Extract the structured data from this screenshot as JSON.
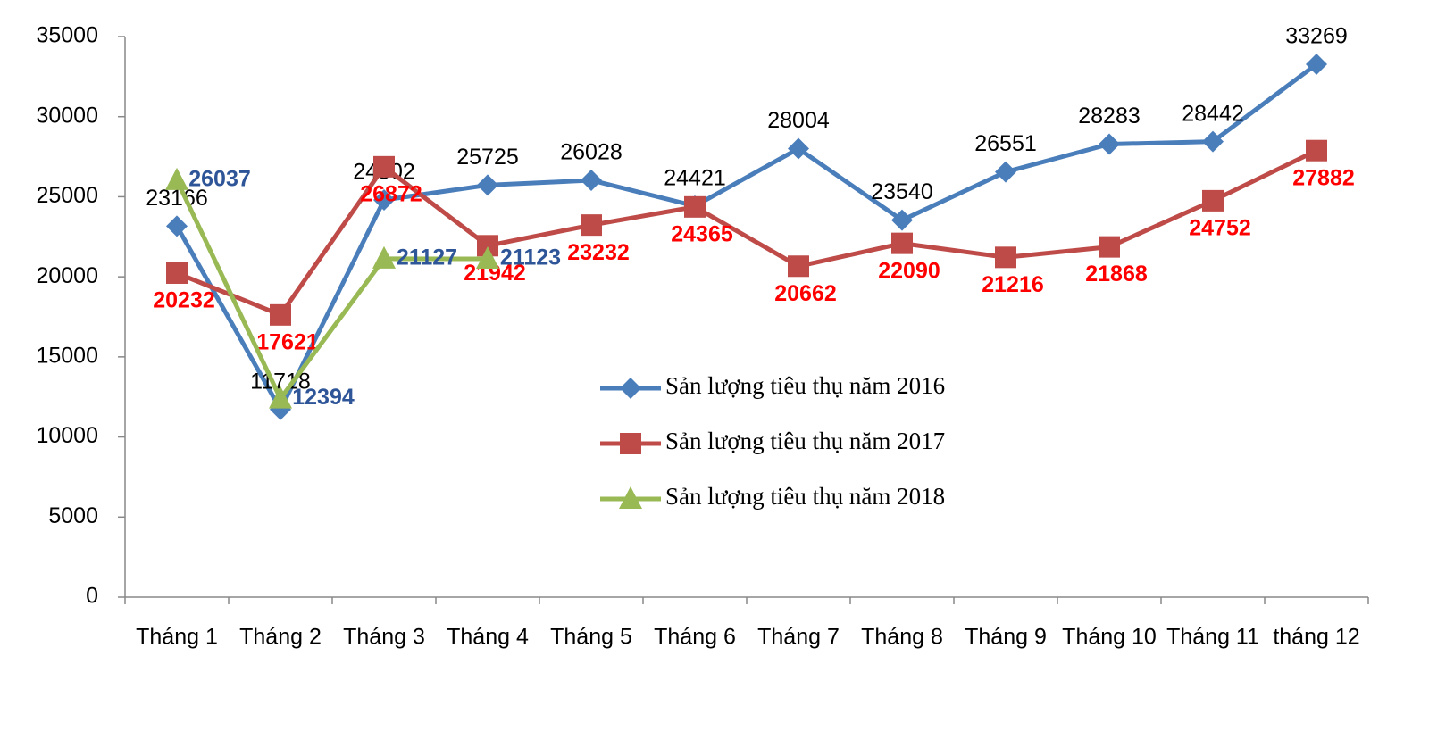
{
  "chart_data": {
    "type": "line",
    "categories": [
      "Tháng 1",
      "Tháng 2",
      "Tháng 3",
      "Tháng 4",
      "Tháng 5",
      "Tháng 6",
      "Tháng 7",
      "Tháng 8",
      "Tháng 9",
      "Tháng 10",
      "Tháng 11",
      "tháng 12"
    ],
    "series": [
      {
        "name": "Sản lượng tiêu thụ năm 2016",
        "color": "#4a7ebb",
        "marker": "diamond",
        "label_color": "#000000",
        "label_bold": false,
        "values": [
          23166,
          11718,
          24802,
          25725,
          26028,
          24421,
          28004,
          23540,
          26551,
          28283,
          28442,
          33269
        ]
      },
      {
        "name": "Sản lượng tiêu thụ năm 2017",
        "color": "#be4b48",
        "marker": "square",
        "label_color": "#ff0000",
        "label_bold": true,
        "values": [
          20232,
          17621,
          26872,
          21942,
          23232,
          24365,
          20662,
          22090,
          21216,
          21868,
          24752,
          27882
        ]
      },
      {
        "name": "Sản lượng tiêu thụ năm 2018",
        "color": "#98b954",
        "marker": "triangle",
        "label_color": "#2e5597",
        "label_bold": true,
        "values": [
          26037,
          12394,
          21127,
          21123,
          null,
          null,
          null,
          null,
          null,
          null,
          null,
          null
        ]
      }
    ],
    "ylim": [
      0,
      35000
    ],
    "yticks": [
      0,
      5000,
      10000,
      15000,
      20000,
      25000,
      30000,
      35000
    ],
    "grid": false
  }
}
